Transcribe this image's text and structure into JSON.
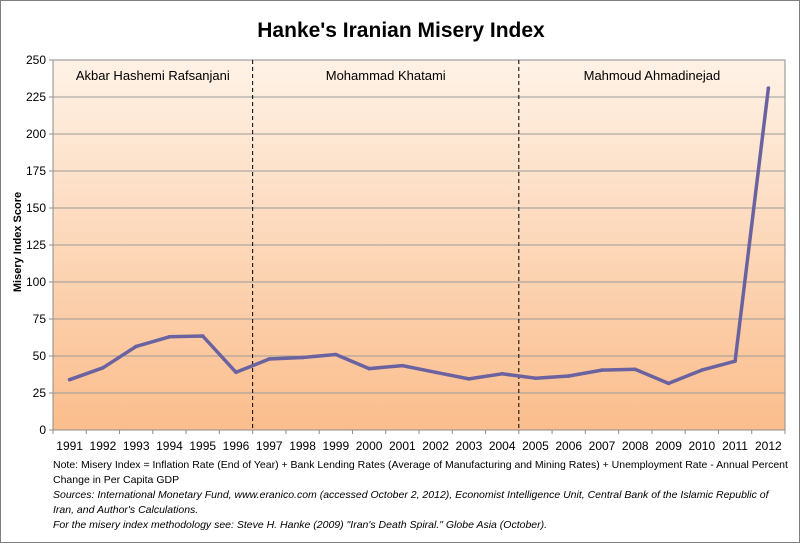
{
  "chart_data": {
    "type": "line",
    "title": "Hanke's Iranian Misery Index",
    "xlabel": "",
    "ylabel": "Misery Index Score",
    "ylim": [
      0,
      250
    ],
    "yticks": [
      0,
      25,
      50,
      75,
      100,
      125,
      150,
      175,
      200,
      225,
      250
    ],
    "grid": true,
    "categories": [
      "1991",
      "1992",
      "1993",
      "1994",
      "1995",
      "1996",
      "1997",
      "1998",
      "1999",
      "2000",
      "2001",
      "2002",
      "2003",
      "2004",
      "2005",
      "2006",
      "2007",
      "2008",
      "2009",
      "2010",
      "2011",
      "2012"
    ],
    "series": [
      {
        "name": "Misery Index",
        "values": [
          34,
          42,
          56.5,
          63,
          63.5,
          39,
          48,
          49,
          51,
          41.5,
          43.5,
          39,
          34.5,
          38,
          35,
          36.5,
          40.5,
          41,
          31.5,
          40.5,
          46.5,
          231
        ],
        "color": "#6b63a0"
      }
    ],
    "eras": [
      {
        "label": "Akbar Hashemi Rafsanjani",
        "from": "1991",
        "to": "1996"
      },
      {
        "label": "Mohammad Khatami",
        "from": "1997",
        "to": "2004"
      },
      {
        "label": "Mahmoud Ahmadinejad",
        "from": "2005",
        "to": "2012"
      }
    ],
    "background_top": "#fef2e6",
    "background_bottom": "#fbbd8c"
  },
  "notes": {
    "note": "Note: Misery Index = Inflation Rate (End of Year) + Bank Lending Rates (Average of Manufacturing and Mining Rates) + Unemployment Rate - Annual Percent Change in Per Capita GDP",
    "sources": "Sources: International Monetary Fund, www.eranico.com (accessed October 2, 2012), Economist Intelligence Unit, Central Bank of the Islamic Republic of Iran, and Author's Calculations.",
    "methodology": "For the misery index methodology see: Steve H. Hanke (2009) \"Iran's Death Spiral.\" Globe Asia (October)."
  }
}
